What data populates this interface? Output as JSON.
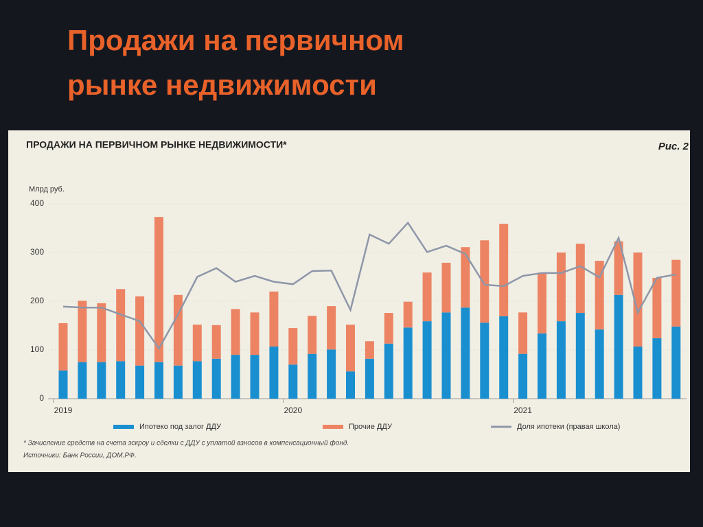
{
  "slide_title": [
    "Продажи на первичном",
    "рынке недвижимости"
  ],
  "chart_data": {
    "type": "stacked-bar-line",
    "title": "ПРОДАЖИ НА ПЕРВИЧНОМ РЫНКЕ НЕДВИЖИМОСТИ*",
    "figure_label": "Рис. 2",
    "y_label": "Млрд руб.",
    "categories": [
      "2019",
      null,
      null,
      null,
      null,
      null,
      null,
      null,
      null,
      null,
      null,
      null,
      "2020",
      null,
      null,
      null,
      null,
      null,
      null,
      null,
      null,
      null,
      null,
      null,
      "2021",
      null,
      null,
      null,
      null,
      null,
      null,
      null,
      null
    ],
    "series": [
      {
        "name": "Ипотеко под залог ДДУ",
        "color": "#1a8fd0",
        "values": [
          58,
          75,
          75,
          77,
          68,
          75,
          68,
          77,
          82,
          90,
          90,
          107,
          70,
          92,
          101,
          56,
          82,
          113,
          146,
          159,
          177,
          187,
          156,
          169,
          92,
          134,
          159,
          176,
          142,
          213,
          107,
          124,
          148
        ]
      },
      {
        "name": "Прочие ДДУ",
        "color": "#ec8463",
        "values": [
          97,
          126,
          121,
          148,
          142,
          298,
          145,
          75,
          69,
          94,
          87,
          113,
          75,
          78,
          89,
          96,
          36,
          63,
          53,
          100,
          102,
          124,
          169,
          190,
          85,
          124,
          141,
          142,
          141,
          110,
          193,
          124,
          137
        ]
      },
      {
        "name": "Доля ипотеки (правая школа)",
        "color": "#8e96a8",
        "type": "line",
        "values": [
          189,
          187,
          187,
          173,
          159,
          103,
          173,
          250,
          268,
          240,
          252,
          240,
          235,
          262,
          263,
          182,
          337,
          318,
          361,
          301,
          314,
          297,
          234,
          231,
          252,
          258,
          258,
          272,
          249,
          330,
          177,
          248,
          255
        ]
      }
    ],
    "ylim": [
      0,
      400
    ],
    "yticks": [
      0,
      100,
      200,
      300,
      400
    ],
    "footnote": "* Зачисление средств на счета эскроу и сделки с ДДУ с уплатой взносов в компенсационный фонд.",
    "source": "Источники: Банк России, ДОМ.РФ."
  }
}
